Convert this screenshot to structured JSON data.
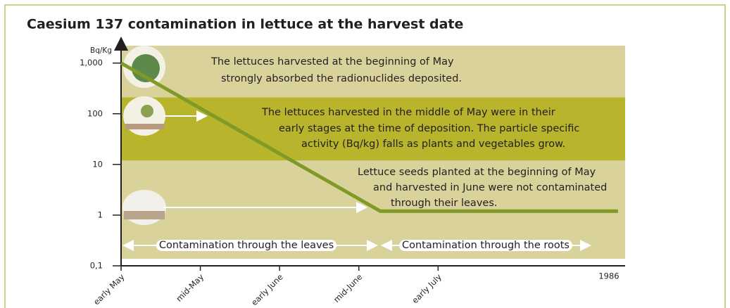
{
  "chart_data": {
    "type": "line",
    "title": "Caesium 137 contamination in lettuce at the harvest date",
    "y_label": "Bq/Kg",
    "x_label": "1986",
    "log_y": true,
    "ylim": [
      0.1,
      2200
    ],
    "yticks": [
      {
        "value": 1000,
        "label": "1,000"
      },
      100,
      10,
      1,
      {
        "value": 0.1,
        "label": "0,1"
      }
    ],
    "xlim": [
      0,
      6.36
    ],
    "xticks": [
      {
        "value": 0,
        "label": "early May"
      },
      {
        "value": 1,
        "label": "mid-May"
      },
      {
        "value": 2,
        "label": "early June"
      },
      {
        "value": 3,
        "label": "mid-June"
      },
      {
        "value": 4,
        "label": "early July"
      }
    ],
    "band": [
      12,
      210
    ],
    "series": [
      {
        "color": "#7f9a27",
        "x": [
          0,
          3.27,
          6.27
        ],
        "values": [
          1000,
          1.2,
          1.2
        ]
      }
    ],
    "annotations": [
      [
        "The lettuces harvested at the beginning of May",
        "strongly absorbed the radionuclides deposited."
      ],
      [
        "The lettuces harvested in the middle of May were in their",
        "early stages at the time of deposition. The particle specific",
        "activity (Bq/kg) falls as plants and vegetables grow."
      ],
      [
        "Lettuce seeds planted at the beginning of May",
        "and harvested in June were not contaminated",
        "through their leaves."
      ]
    ],
    "phases": [
      "Contamination through the leaves",
      "Contamination through the roots"
    ]
  }
}
